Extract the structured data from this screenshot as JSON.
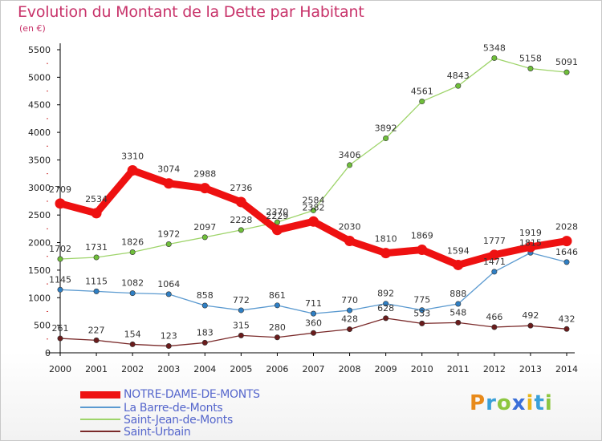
{
  "header": {
    "title": "Evolution du Montant de la Dette par Habitant",
    "subtitle": "(en €)"
  },
  "logo": {
    "text": "Proxiti",
    "letters": [
      {
        "ch": "P",
        "color": "#e88a1a"
      },
      {
        "ch": "r",
        "color": "#3aa0d8"
      },
      {
        "ch": "o",
        "color": "#8cc63f"
      },
      {
        "ch": "x",
        "color": "#3a6fd8"
      },
      {
        "ch": "i",
        "color": "#e8b61a"
      },
      {
        "ch": "t",
        "color": "#3aa0d8"
      },
      {
        "ch": "i",
        "color": "#8cc63f"
      }
    ]
  },
  "chart_data": {
    "type": "line",
    "title": "Evolution du Montant de la Dette par Habitant",
    "subtitle": "(en €)",
    "xlabel": "",
    "ylabel": "",
    "x": [
      "2000",
      "2001",
      "2002",
      "2003",
      "2004",
      "2005",
      "2006",
      "2007",
      "2008",
      "2009",
      "2010",
      "2011",
      "2012",
      "2013",
      "2014"
    ],
    "ylim": [
      0,
      5500
    ],
    "yticks": [
      0,
      500,
      1000,
      1500,
      2000,
      2500,
      3000,
      3500,
      4000,
      4500,
      5000,
      5500
    ],
    "grid": false,
    "legend_position": "bottom-left",
    "series": [
      {
        "name": "NOTRE-DAME-DE-MONTS",
        "color": "#ee1111",
        "marker": "#ee1111",
        "bold": true,
        "values": [
          2709,
          2534,
          3310,
          3074,
          2988,
          2736,
          2229,
          2382,
          2030,
          1810,
          1869,
          1594,
          1777,
          1919,
          2028
        ],
        "labels": [
          "2709",
          "2534",
          "3310",
          "3074",
          "2988",
          "2736",
          "2229",
          "2382",
          "2030",
          "1810",
          "1869",
          "1594",
          "1777",
          "1919",
          "2028"
        ]
      },
      {
        "name": "La Barre-de-Monts",
        "color": "#5b9ad0",
        "marker": "#2f7fc4",
        "bold": false,
        "values": [
          1145,
          1115,
          1082,
          1064,
          858,
          772,
          861,
          711,
          770,
          892,
          775,
          888,
          1471,
          1815,
          1646
        ],
        "labels": [
          "1145",
          "1115",
          "1082",
          "1064",
          "858",
          "772",
          "861",
          "711",
          "770",
          "892",
          "775",
          "888",
          "1471",
          "1815",
          "1646"
        ]
      },
      {
        "name": "Saint-Jean-de-Monts",
        "color": "#9ed46a",
        "marker": "#6fbf3a",
        "bold": false,
        "values": [
          1702,
          1731,
          1826,
          1972,
          2097,
          2228,
          2370,
          2584,
          3406,
          3892,
          4561,
          4843,
          5348,
          5158,
          5091
        ],
        "labels": [
          "1702",
          "1731",
          "1826",
          "1972",
          "2097",
          "2228",
          "2370",
          "2584",
          "3406",
          "3892",
          "4561",
          "4843",
          "5348",
          "5158",
          "5091"
        ]
      },
      {
        "name": "Saint-Urbain",
        "color": "#7a2a2a",
        "marker": "#6a1c1c",
        "bold": false,
        "values": [
          261,
          227,
          154,
          123,
          183,
          315,
          280,
          360,
          428,
          628,
          533,
          548,
          466,
          492,
          432
        ],
        "labels": [
          "261",
          "227",
          "154",
          "123",
          "183",
          "315",
          "280",
          "360",
          "428",
          "628",
          "533",
          "548",
          "466",
          "492",
          "432"
        ]
      }
    ]
  }
}
